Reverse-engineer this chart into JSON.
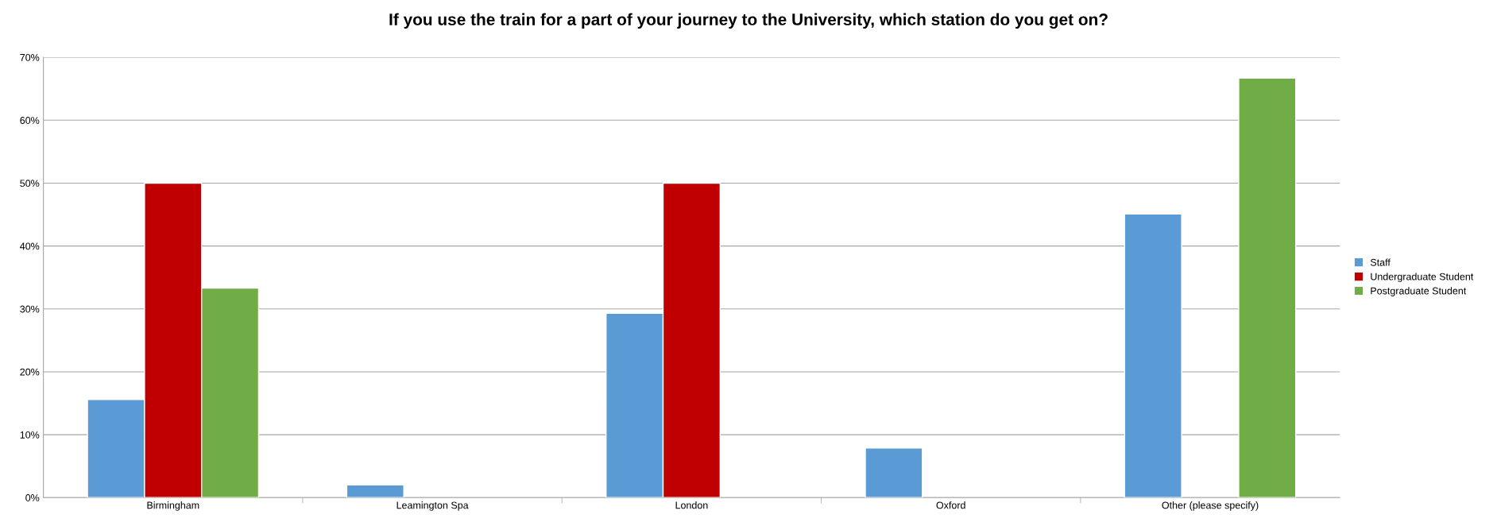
{
  "chart_data": {
    "type": "bar",
    "title": "If you use the train for a part of your journey to the University, which station do you get on?",
    "categories": [
      "Birmingham",
      "Leamington Spa",
      "London",
      "Oxford",
      "Other (please specify)"
    ],
    "series": [
      {
        "name": "Staff",
        "color": "#5b9bd5",
        "values": [
          15.6,
          2.0,
          29.3,
          7.9,
          45.1
        ]
      },
      {
        "name": "Undergraduate Student",
        "color": "#c00000",
        "values": [
          50,
          null,
          50,
          null,
          null
        ]
      },
      {
        "name": "Postgraduate Student",
        "color": "#70ad47",
        "values": [
          33.3,
          null,
          null,
          null,
          66.7
        ]
      }
    ],
    "ylim": [
      0,
      70
    ],
    "yticks": [
      {
        "value": 0,
        "label": "0%"
      },
      {
        "value": 10,
        "label": "10%"
      },
      {
        "value": 20,
        "label": "20%"
      },
      {
        "value": 30,
        "label": "30%"
      },
      {
        "value": 40,
        "label": "40%"
      },
      {
        "value": 50,
        "label": "50%"
      },
      {
        "value": 60,
        "label": "60%"
      },
      {
        "value": 70,
        "label": "70%"
      }
    ],
    "grid": "y",
    "legend": "right"
  }
}
